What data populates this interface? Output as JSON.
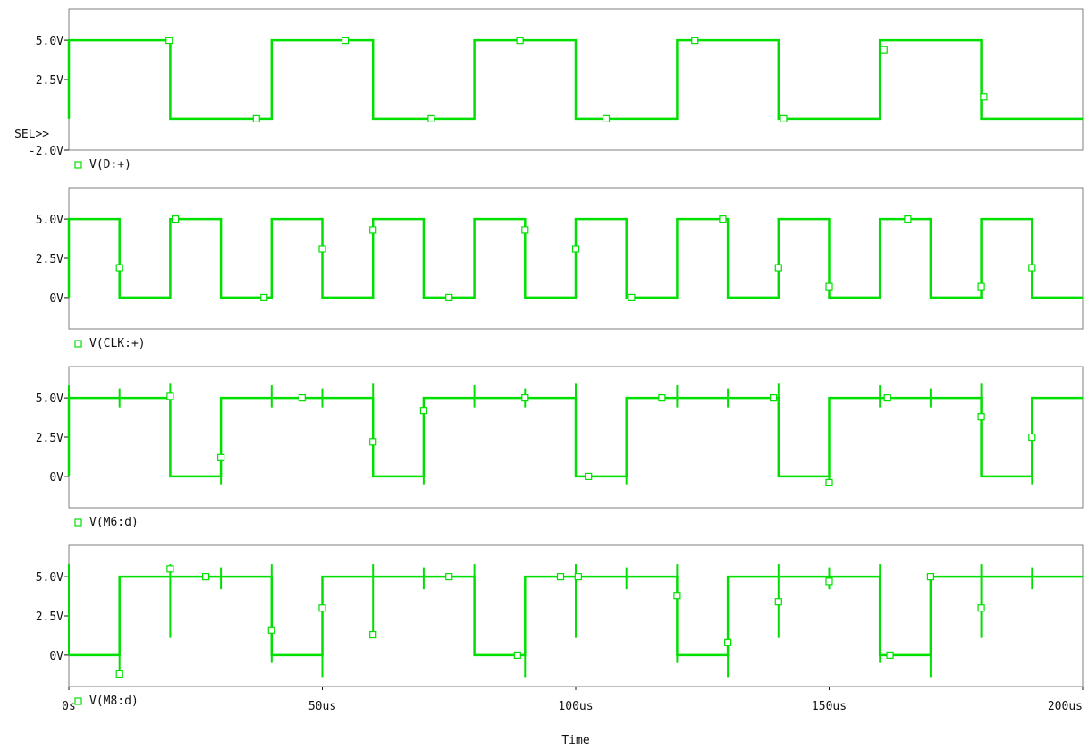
{
  "colors": {
    "trace": "#00e000",
    "frame": "#7f7f7f",
    "text": "#111111",
    "background": "#ffffff"
  },
  "marker": "hollow-square",
  "sel_label": "SEL>>",
  "x_label": "Time",
  "chart_data": [
    {
      "type": "line",
      "legend": "V(D:+)",
      "ylim": [
        -2.0,
        7.0
      ],
      "yticks": [
        {
          "v": 5.0,
          "label": "5.0V"
        },
        {
          "v": 2.5,
          "label": "2.5V"
        },
        {
          "v": -2.0,
          "label": "-2.0V"
        }
      ],
      "series": [
        {
          "x": [
            0,
            0,
            20,
            20,
            40,
            40,
            60,
            60,
            80,
            80,
            100,
            100,
            120,
            120,
            140,
            140,
            160,
            160,
            180,
            180,
            200
          ],
          "y": [
            0,
            5,
            5,
            0,
            0,
            5,
            5,
            0,
            0,
            5,
            5,
            0,
            0,
            5,
            5,
            0,
            0,
            5,
            5,
            0,
            0
          ],
          "markers": [
            [
              19.8,
              5.0
            ],
            [
              37,
              0
            ],
            [
              54.5,
              5.0
            ],
            [
              71.5,
              0
            ],
            [
              89,
              5.0
            ],
            [
              106,
              0
            ],
            [
              123.5,
              5.0
            ],
            [
              141,
              0
            ],
            [
              160.8,
              4.4
            ],
            [
              180.5,
              1.4
            ]
          ]
        }
      ]
    },
    {
      "type": "line",
      "legend": "V(CLK:+)",
      "ylim": [
        -2.0,
        7.0
      ],
      "yticks": [
        {
          "v": 5.0,
          "label": "5.0V"
        },
        {
          "v": 2.5,
          "label": "2.5V"
        },
        {
          "v": 0,
          "label": "0V"
        }
      ],
      "series": [
        {
          "x": [
            0,
            0,
            10,
            10,
            20,
            20,
            30,
            30,
            40,
            40,
            50,
            50,
            60,
            60,
            70,
            70,
            80,
            80,
            90,
            90,
            100,
            100,
            110,
            110,
            120,
            120,
            130,
            130,
            140,
            140,
            150,
            150,
            160,
            160,
            170,
            170,
            180,
            180,
            190,
            190,
            200
          ],
          "y": [
            0,
            5,
            5,
            0,
            0,
            5,
            5,
            0,
            0,
            5,
            5,
            0,
            0,
            5,
            5,
            0,
            0,
            5,
            5,
            0,
            0,
            5,
            5,
            0,
            0,
            5,
            5,
            0,
            0,
            5,
            5,
            0,
            0,
            5,
            5,
            0,
            0,
            5,
            5,
            0,
            0
          ],
          "markers": [
            [
              10,
              1.9
            ],
            [
              21,
              5.0
            ],
            [
              38.5,
              0
            ],
            [
              50,
              3.1
            ],
            [
              60,
              4.3
            ],
            [
              75,
              0
            ],
            [
              90,
              4.3
            ],
            [
              100,
              3.1
            ],
            [
              111,
              0
            ],
            [
              129,
              5.0
            ],
            [
              140,
              1.9
            ],
            [
              150,
              0.7
            ],
            [
              165.5,
              5.0
            ],
            [
              180,
              0.7
            ],
            [
              190,
              1.9
            ]
          ]
        }
      ]
    },
    {
      "type": "line",
      "legend": "V(M6:d)",
      "ylim": [
        -2.0,
        7.0
      ],
      "yticks": [
        {
          "v": 5.0,
          "label": "5.0V"
        },
        {
          "v": 2.5,
          "label": "2.5V"
        },
        {
          "v": 0,
          "label": "0V"
        }
      ],
      "series": [
        {
          "x": [
            0,
            0,
            20,
            20,
            30,
            30,
            60,
            60,
            70,
            70,
            100,
            100,
            110,
            110,
            140,
            140,
            150,
            150,
            180,
            180,
            190,
            190,
            200
          ],
          "y": [
            0,
            5,
            5,
            0,
            0,
            5,
            5,
            0,
            0,
            5,
            5,
            0,
            0,
            5,
            5,
            0,
            0,
            5,
            5,
            0,
            0,
            5,
            5
          ],
          "markers": [
            [
              20,
              5.1
            ],
            [
              30,
              1.2
            ],
            [
              46,
              5.0
            ],
            [
              60,
              2.2
            ],
            [
              70,
              4.2
            ],
            [
              90,
              5.0
            ],
            [
              102.5,
              0
            ],
            [
              117,
              5.0
            ],
            [
              139,
              5.0
            ],
            [
              150,
              -0.4
            ],
            [
              161.5,
              5.0
            ],
            [
              180,
              3.8
            ],
            [
              190,
              2.5
            ]
          ],
          "spikes": [
            [
              0,
              4.2,
              5.8
            ],
            [
              10,
              4.4,
              5.6
            ],
            [
              20,
              4.4,
              5.9
            ],
            [
              30,
              -0.5,
              0.5
            ],
            [
              40,
              4.4,
              5.8
            ],
            [
              50,
              4.4,
              5.6
            ],
            [
              60,
              4.4,
              5.9
            ],
            [
              70,
              -0.5,
              0.5
            ],
            [
              80,
              4.4,
              5.8
            ],
            [
              90,
              4.4,
              5.6
            ],
            [
              100,
              4.4,
              5.9
            ],
            [
              110,
              -0.5,
              0.5
            ],
            [
              120,
              4.4,
              5.8
            ],
            [
              130,
              4.4,
              5.6
            ],
            [
              140,
              4.4,
              5.9
            ],
            [
              150,
              -0.5,
              0.5
            ],
            [
              160,
              4.4,
              5.8
            ],
            [
              170,
              4.4,
              5.6
            ],
            [
              180,
              4.4,
              5.9
            ],
            [
              190,
              -0.5,
              0.5
            ]
          ]
        }
      ]
    },
    {
      "type": "line",
      "legend": "V(M8:d)",
      "ylim": [
        -2.0,
        7.0
      ],
      "yticks": [
        {
          "v": 5.0,
          "label": "5.0V"
        },
        {
          "v": 2.5,
          "label": "2.5V"
        },
        {
          "v": 0,
          "label": "0V"
        }
      ],
      "series": [
        {
          "x": [
            0,
            0,
            10,
            10,
            40,
            40,
            50,
            50,
            80,
            80,
            90,
            90,
            120,
            120,
            130,
            130,
            160,
            160,
            170,
            170,
            200
          ],
          "y": [
            0,
            0,
            0,
            5,
            5,
            0,
            0,
            5,
            5,
            0,
            0,
            5,
            5,
            0,
            0,
            5,
            5,
            0,
            0,
            5,
            5
          ],
          "markers": [
            [
              10,
              -1.2
            ],
            [
              20,
              5.5
            ],
            [
              27,
              5.0
            ],
            [
              40,
              1.6
            ],
            [
              50,
              3.0
            ],
            [
              60,
              1.3
            ],
            [
              75,
              5.0
            ],
            [
              88.5,
              0
            ],
            [
              97,
              5.0
            ],
            [
              100.5,
              5.0
            ],
            [
              120,
              3.8
            ],
            [
              130,
              0.8
            ],
            [
              140,
              3.4
            ],
            [
              150,
              4.7
            ],
            [
              162,
              0
            ],
            [
              170,
              5.0
            ],
            [
              180,
              3.0
            ]
          ],
          "spikes": [
            [
              0,
              0,
              5.8
            ],
            [
              10,
              -1.2,
              0
            ],
            [
              20,
              1.1,
              5.8
            ],
            [
              30,
              4.2,
              5.6
            ],
            [
              40,
              -0.5,
              5.8
            ],
            [
              50,
              -1.4,
              0
            ],
            [
              60,
              1.1,
              5.8
            ],
            [
              70,
              4.2,
              5.6
            ],
            [
              80,
              1.0,
              5.8
            ],
            [
              90,
              -1.4,
              0
            ],
            [
              100,
              1.1,
              5.8
            ],
            [
              110,
              4.2,
              5.6
            ],
            [
              120,
              -0.5,
              5.8
            ],
            [
              130,
              -1.4,
              0
            ],
            [
              140,
              1.1,
              5.8
            ],
            [
              150,
              4.2,
              5.6
            ],
            [
              160,
              -0.5,
              5.8
            ],
            [
              170,
              -1.4,
              0
            ],
            [
              180,
              1.1,
              5.8
            ],
            [
              190,
              4.2,
              5.6
            ]
          ]
        }
      ]
    }
  ],
  "x_axis": {
    "range": [
      0,
      200
    ],
    "unit": "us",
    "ticks": [
      {
        "v": 0,
        "label": "0s"
      },
      {
        "v": 50,
        "label": "50us"
      },
      {
        "v": 100,
        "label": "100us"
      },
      {
        "v": 150,
        "label": "150us"
      },
      {
        "v": 200,
        "label": "200us"
      }
    ]
  }
}
